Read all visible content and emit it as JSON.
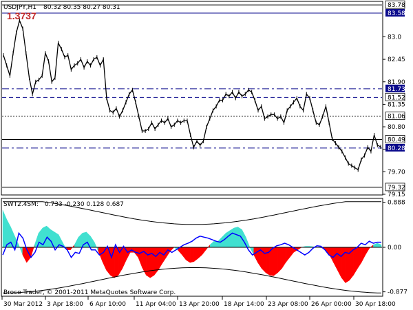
{
  "header": {
    "symbol_label": "USDJPY,H1",
    "ohlc": "80.32 80.35 80.27 80.31",
    "big_value": "1.3737"
  },
  "price_axis": {
    "range": [
      79.15,
      83.85
    ],
    "ticks": [
      "83.0",
      "82.45",
      "81.90",
      "81.35",
      "80.80",
      "80.25",
      "79.70",
      "79.15"
    ]
  },
  "hlines": [
    {
      "value": 83.78,
      "label": "83.78",
      "style": "solid",
      "color": "#000000",
      "badge": false
    },
    {
      "value": 83.58,
      "label": "83.58",
      "style": "solid",
      "color": "#0a0a8c",
      "badge": true
    },
    {
      "value": 81.73,
      "label": "81.73",
      "style": "dash-dot",
      "color": "#0a0a8c",
      "badge": true
    },
    {
      "value": 81.52,
      "label": "81.52",
      "style": "dashed",
      "color": "#0a0a8c",
      "badge": false
    },
    {
      "value": 81.06,
      "label": "81.06",
      "style": "dotted",
      "color": "#000000",
      "badge": false
    },
    {
      "value": 80.49,
      "label": "80.49",
      "style": "solid",
      "color": "#000000",
      "badge": false
    },
    {
      "value": 80.28,
      "label": "80.28",
      "style": "dash-dot",
      "color": "#0a0a8c",
      "badge": true
    },
    {
      "value": 79.32,
      "label": "79.32",
      "style": "solid",
      "color": "#000000",
      "badge": false
    }
  ],
  "price_series": [
    82.55,
    82.3,
    82.05,
    82.6,
    83.1,
    83.4,
    83.2,
    82.6,
    82.0,
    81.6,
    81.9,
    81.95,
    82.05,
    82.6,
    82.4,
    81.9,
    82.0,
    82.85,
    82.7,
    82.5,
    82.55,
    82.2,
    82.3,
    82.35,
    82.45,
    82.25,
    82.4,
    82.3,
    82.45,
    82.5,
    82.3,
    82.45,
    81.5,
    81.2,
    81.15,
    81.25,
    81.05,
    81.2,
    81.4,
    81.6,
    81.7,
    81.4,
    81.05,
    80.7,
    80.7,
    80.75,
    80.9,
    80.75,
    80.85,
    80.95,
    80.9,
    81.0,
    80.8,
    80.85,
    80.95,
    80.9,
    80.95,
    80.95,
    80.6,
    80.3,
    80.45,
    80.35,
    80.45,
    80.8,
    81.0,
    81.2,
    81.3,
    81.45,
    81.45,
    81.6,
    81.55,
    81.65,
    81.5,
    81.65,
    81.55,
    81.6,
    81.7,
    81.65,
    81.45,
    81.2,
    81.3,
    81.0,
    81.05,
    81.1,
    81.1,
    81.0,
    81.05,
    80.9,
    81.2,
    81.3,
    81.4,
    81.5,
    81.3,
    81.2,
    81.6,
    81.5,
    81.2,
    80.9,
    80.85,
    81.05,
    81.3,
    80.9,
    80.5,
    80.4,
    80.3,
    80.2,
    80.05,
    79.9,
    79.85,
    79.8,
    79.75,
    80.0,
    80.1,
    80.3,
    80.2,
    80.6,
    80.35,
    80.31
  ],
  "indicator": {
    "label": "SWT2.4SM:",
    "values_text": "0.733 -0.230 0.128 0.687",
    "range": [
      -0.95,
      0.95
    ],
    "ticks": [
      "0.888",
      "0.00",
      "-0.877"
    ],
    "colors": {
      "positive_fill": "#40e0d0",
      "negative_fill": "#ff0000",
      "signal_line": "#0000ff",
      "band_line": "#000000"
    },
    "fill_series": [
      0.73,
      0.55,
      0.4,
      0.22,
      0.05,
      -0.15,
      -0.3,
      -0.2,
      0.05,
      0.28,
      0.38,
      0.42,
      0.35,
      0.3,
      0.25,
      0.1,
      -0.05,
      -0.05,
      0.05,
      0.2,
      0.28,
      0.3,
      0.22,
      0.1,
      -0.08,
      -0.28,
      -0.45,
      -0.55,
      -0.6,
      -0.55,
      -0.42,
      -0.25,
      -0.1,
      -0.1,
      -0.2,
      -0.4,
      -0.55,
      -0.6,
      -0.55,
      -0.45,
      -0.32,
      -0.2,
      -0.08,
      0.0,
      -0.06,
      -0.15,
      -0.25,
      -0.3,
      -0.28,
      -0.22,
      -0.15,
      -0.05,
      0.05,
      0.12,
      0.12,
      0.2,
      0.28,
      0.33,
      0.38,
      0.4,
      0.35,
      0.2,
      0.0,
      -0.15,
      -0.3,
      -0.42,
      -0.5,
      -0.55,
      -0.56,
      -0.5,
      -0.42,
      -0.3,
      -0.2,
      -0.1,
      -0.05,
      0.0,
      0.02,
      0.02,
      0.01,
      0.0,
      -0.01,
      -0.05,
      -0.15,
      -0.3,
      -0.45,
      -0.6,
      -0.7,
      -0.65,
      -0.55,
      -0.42,
      -0.3,
      -0.15,
      -0.02,
      0.05,
      0.08,
      0.05
    ],
    "signal_series": [
      -0.15,
      0.05,
      0.1,
      -0.05,
      0.28,
      0.18,
      -0.05,
      -0.2,
      -0.1,
      0.1,
      0.05,
      0.2,
      0.12,
      -0.05,
      0.05,
      0.02,
      -0.05,
      -0.2,
      -0.1,
      -0.12,
      0.05,
      0.1,
      -0.05,
      -0.05,
      -0.15,
      -0.1,
      0.02,
      -0.2,
      0.05,
      -0.1,
      0.02,
      -0.1,
      -0.05,
      -0.1,
      -0.12,
      -0.08,
      -0.15,
      -0.12,
      -0.18,
      -0.1,
      -0.15,
      -0.05,
      -0.1,
      -0.05,
      0.0,
      0.05,
      0.08,
      0.12,
      0.18,
      0.22,
      0.2,
      0.18,
      0.15,
      0.12,
      0.1,
      0.15,
      0.22,
      0.28,
      0.25,
      0.22,
      0.1,
      -0.05,
      -0.15,
      -0.1,
      -0.05,
      -0.12,
      -0.1,
      -0.02,
      0.03,
      0.05,
      0.08,
      0.05,
      0.0,
      -0.05,
      -0.1,
      -0.15,
      -0.1,
      -0.02,
      0.03,
      0.02,
      -0.05,
      -0.15,
      -0.2,
      -0.12,
      -0.18,
      -0.1,
      -0.12,
      -0.05,
      0.0,
      0.08,
      0.05,
      0.12,
      0.08,
      0.1,
      0.1
    ]
  },
  "time_axis": [
    "30 Mar 2012",
    "3 Apr 18:00",
    "6 Apr 10:00",
    "11 Apr 04:00",
    "13 Apr 20:00",
    "18 Apr 14:00",
    "23 Apr 08:00",
    "26 Apr 00:00",
    "30 Apr 18:00"
  ],
  "copyright": "Broco Trader, © 2001-2011 MetaQuotes Software Corp."
}
